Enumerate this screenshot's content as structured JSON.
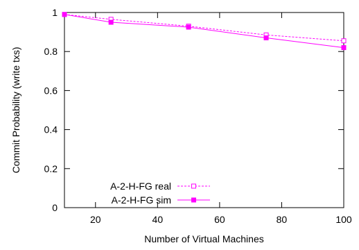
{
  "chart_data": {
    "type": "line",
    "title": "",
    "xlabel": "Number of Virtual Machines",
    "ylabel": "Commit Probability (write txs)",
    "xlim": [
      10,
      100
    ],
    "ylim": [
      0,
      1
    ],
    "xticks": [
      20,
      40,
      60,
      80,
      100
    ],
    "yticks": [
      0,
      0.2,
      0.4,
      0.6,
      0.8,
      1
    ],
    "xtick_labels": [
      "20",
      "40",
      "60",
      "80",
      "100"
    ],
    "ytick_labels": [
      "0",
      "0.2",
      "0.4",
      "0.6",
      "0.8",
      "1"
    ],
    "grid": false,
    "legend_position": "bottom-left",
    "x": [
      10,
      25,
      50,
      75,
      100
    ],
    "series": [
      {
        "name": "A-2-H-FG real",
        "values": [
          0.99,
          0.965,
          0.93,
          0.885,
          0.855
        ],
        "color": "#ff00ff",
        "line_style": "dashed",
        "marker": "open-square"
      },
      {
        "name": "A-2-H-FG sim",
        "values": [
          0.99,
          0.95,
          0.925,
          0.87,
          0.82
        ],
        "color": "#ff00ff",
        "line_style": "solid",
        "marker": "filled-square"
      }
    ]
  }
}
